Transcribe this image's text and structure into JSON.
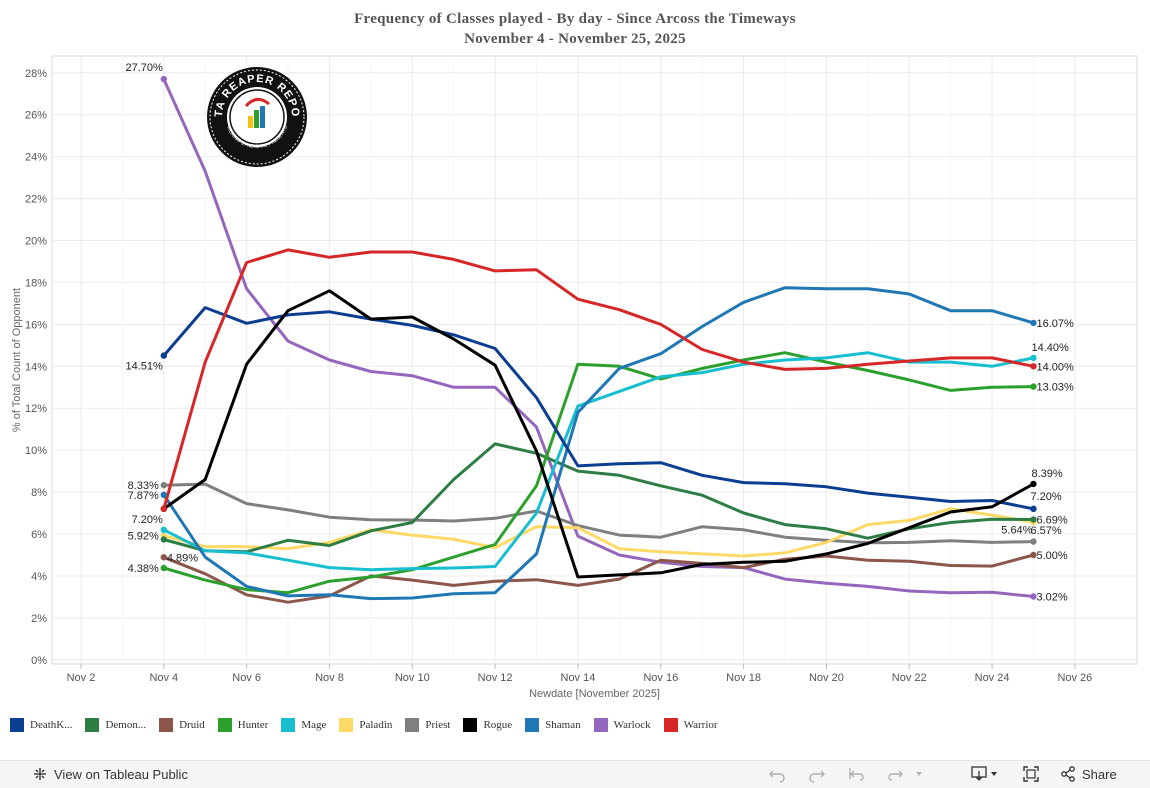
{
  "title": {
    "line1": "Frequency  of  Classes  played  -  By  day  -  Since  Arcoss  the  Timeways",
    "line2": "November  4  -  November  25,  2025"
  },
  "logo": {
    "text": "DATA REAPER REPORT",
    "subtext": "VICIOUS SYNDICATE PRESENTS"
  },
  "chart_data": {
    "type": "line",
    "xlabel": "Newdate [November 2025]",
    "ylabel": "% of Total Count of Opponent",
    "x_ticks": [
      "Nov 2",
      "Nov 4",
      "Nov 6",
      "Nov 8",
      "Nov 10",
      "Nov 12",
      "Nov 14",
      "Nov 16",
      "Nov 18",
      "Nov 20",
      "Nov 22",
      "Nov 24",
      "Nov 26"
    ],
    "x_tick_days": [
      2,
      4,
      6,
      8,
      10,
      12,
      14,
      16,
      18,
      20,
      22,
      24,
      26
    ],
    "y_ticks": [
      "0%",
      "2%",
      "4%",
      "6%",
      "8%",
      "10%",
      "12%",
      "14%",
      "16%",
      "18%",
      "20%",
      "22%",
      "24%",
      "26%",
      "28%"
    ],
    "xlim": [
      1.3,
      27.5
    ],
    "ylim": [
      -0.2,
      28.8
    ],
    "x": [
      4,
      5,
      6,
      7,
      8,
      9,
      10,
      11,
      12,
      13,
      14,
      15,
      16,
      17,
      18,
      19,
      20,
      21,
      22,
      23,
      24,
      25
    ],
    "series": [
      {
        "name": "Warlock",
        "color": "#9467bd",
        "values": [
          27.7,
          23.3,
          17.7,
          15.2,
          14.3,
          13.75,
          13.55,
          13.0,
          13.0,
          11.1,
          5.9,
          5.0,
          4.65,
          4.45,
          4.4,
          3.85,
          3.65,
          3.5,
          3.28,
          3.2,
          3.22,
          3.02
        ]
      },
      {
        "name": "Priest",
        "color": "#7f7f7f",
        "values": [
          8.33,
          8.38,
          7.45,
          7.15,
          6.8,
          6.68,
          6.67,
          6.62,
          6.75,
          7.1,
          6.4,
          5.95,
          5.85,
          6.35,
          6.2,
          5.85,
          5.7,
          5.58,
          5.6,
          5.68,
          5.6,
          5.64
        ]
      },
      {
        "name": "Druid",
        "color": "#8c564b",
        "values": [
          4.89,
          4.1,
          3.1,
          2.75,
          3.05,
          4.0,
          3.8,
          3.55,
          3.75,
          3.82,
          3.55,
          3.85,
          4.75,
          4.6,
          4.4,
          4.8,
          4.95,
          4.75,
          4.7,
          4.5,
          4.47,
          5.0
        ]
      },
      {
        "name": "Paladin",
        "color": "#ffd966",
        "values": [
          5.92,
          5.4,
          5.4,
          5.3,
          5.6,
          6.2,
          5.95,
          5.75,
          5.35,
          6.35,
          6.3,
          5.3,
          5.15,
          5.05,
          4.95,
          5.1,
          5.6,
          6.45,
          6.65,
          7.2,
          6.9,
          6.57
        ]
      },
      {
        "name": "Demon Hunter",
        "color": "#2e7d45",
        "values": [
          5.74,
          5.2,
          5.15,
          5.7,
          5.45,
          6.15,
          6.55,
          8.6,
          10.3,
          9.85,
          9.0,
          8.8,
          8.3,
          7.85,
          7.0,
          6.45,
          6.25,
          5.8,
          6.25,
          6.55,
          6.7,
          6.69
        ]
      },
      {
        "name": "Hunter",
        "color": "#2ca02c",
        "values": [
          4.38,
          3.8,
          3.35,
          3.2,
          3.75,
          3.95,
          4.3,
          4.9,
          5.5,
          8.3,
          14.1,
          14.0,
          13.4,
          13.9,
          14.3,
          14.65,
          14.2,
          13.8,
          13.35,
          12.85,
          13.0,
          13.03
        ]
      },
      {
        "name": "Mage",
        "color": "#17becf",
        "values": [
          6.2,
          5.2,
          5.1,
          4.75,
          4.4,
          4.3,
          4.35,
          4.38,
          4.45,
          7.0,
          12.1,
          12.8,
          13.5,
          13.7,
          14.1,
          14.3,
          14.4,
          14.65,
          14.2,
          14.2,
          14.0,
          14.4
        ]
      },
      {
        "name": "Shaman",
        "color": "#1f77b4",
        "values": [
          7.87,
          4.9,
          3.5,
          3.05,
          3.1,
          2.92,
          2.95,
          3.15,
          3.2,
          5.05,
          11.8,
          13.9,
          14.6,
          15.9,
          17.05,
          17.75,
          17.7,
          17.7,
          17.45,
          16.65,
          16.65,
          16.07
        ]
      },
      {
        "name": "Death Knight",
        "color": "#0b3d91",
        "values": [
          14.51,
          16.8,
          16.05,
          16.45,
          16.6,
          16.25,
          15.95,
          15.5,
          14.85,
          12.5,
          9.25,
          9.35,
          9.4,
          8.8,
          8.45,
          8.4,
          8.25,
          7.95,
          7.75,
          7.55,
          7.6,
          7.2
        ]
      },
      {
        "name": "Rogue",
        "color": "#000000",
        "values": [
          7.2,
          8.6,
          14.1,
          16.65,
          17.6,
          16.25,
          16.35,
          15.3,
          14.05,
          9.95,
          3.95,
          4.05,
          4.15,
          4.55,
          4.65,
          4.7,
          5.05,
          5.55,
          6.3,
          7.05,
          7.3,
          8.39
        ]
      },
      {
        "name": "Warrior",
        "color": "#d62728",
        "values": [
          7.2,
          14.2,
          18.95,
          19.55,
          19.2,
          19.45,
          19.45,
          19.1,
          18.55,
          18.6,
          17.2,
          16.7,
          16.0,
          14.8,
          14.2,
          13.85,
          13.9,
          14.1,
          14.25,
          14.4,
          14.4,
          14.0
        ]
      }
    ],
    "labels": [
      {
        "series": "Warlock",
        "day": 4,
        "text": "27.70%",
        "pos": "above-left"
      },
      {
        "series": "Death Knight",
        "day": 4,
        "text": "14.51%",
        "pos": "below-left"
      },
      {
        "series": "Priest",
        "day": 4,
        "text": "8.33%",
        "pos": "left"
      },
      {
        "series": "Shaman",
        "day": 4,
        "text": "7.87%",
        "pos": "left"
      },
      {
        "series": "Rogue",
        "day": 4,
        "text": "7.20%",
        "pos": "below-left"
      },
      {
        "series": "Paladin",
        "day": 4,
        "text": "5.92%",
        "pos": "left"
      },
      {
        "series": "Druid",
        "day": 4,
        "text": "4.89%",
        "pos": "right"
      },
      {
        "series": "Hunter",
        "day": 4,
        "text": "4.38%",
        "pos": "left"
      },
      {
        "series": "Shaman",
        "day": 25,
        "text": "16.07%",
        "pos": "right"
      },
      {
        "series": "Mage",
        "day": 25,
        "text": "14.40%",
        "pos": "above-right"
      },
      {
        "series": "Warrior",
        "day": 25,
        "text": "14.00%",
        "pos": "right"
      },
      {
        "series": "Hunter",
        "day": 25,
        "text": "13.03%",
        "pos": "right"
      },
      {
        "series": "Rogue",
        "day": 25,
        "text": "8.39%",
        "pos": "above-right"
      },
      {
        "series": "Death Knight",
        "day": 25,
        "text": "7.20%",
        "pos": "right-up"
      },
      {
        "series": "Demon Hunter",
        "day": 25,
        "text": "6.69%",
        "pos": "right"
      },
      {
        "series": "Paladin",
        "day": 25,
        "text": "6.57%",
        "pos": "right-low"
      },
      {
        "series": "Priest",
        "day": 25,
        "text": "5.64%",
        "pos": "above-left"
      },
      {
        "series": "Druid",
        "day": 25,
        "text": "5.00%",
        "pos": "right"
      },
      {
        "series": "Warlock",
        "day": 25,
        "text": "3.02%",
        "pos": "right"
      }
    ]
  },
  "legend": [
    {
      "label": "DeathK...",
      "color": "#0b3d91"
    },
    {
      "label": "Demon...",
      "color": "#2e7d45"
    },
    {
      "label": "Druid",
      "color": "#8c564b"
    },
    {
      "label": "Hunter",
      "color": "#2ca02c"
    },
    {
      "label": "Mage",
      "color": "#17becf"
    },
    {
      "label": "Paladin",
      "color": "#ffd966"
    },
    {
      "label": "Priest",
      "color": "#7f7f7f"
    },
    {
      "label": "Rogue",
      "color": "#000000"
    },
    {
      "label": "Shaman",
      "color": "#1f77b4"
    },
    {
      "label": "Warlock",
      "color": "#9467bd"
    },
    {
      "label": "Warrior",
      "color": "#d62728"
    }
  ],
  "footer": {
    "view_label": "View on Tableau Public",
    "share_label": "Share"
  }
}
